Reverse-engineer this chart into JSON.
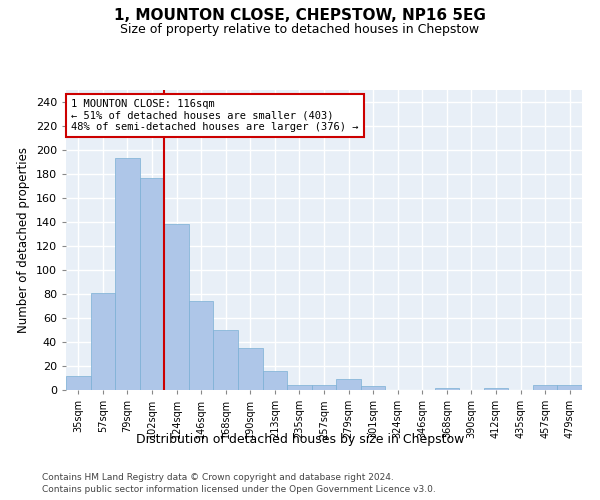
{
  "title": "1, MOUNTON CLOSE, CHEPSTOW, NP16 5EG",
  "subtitle": "Size of property relative to detached houses in Chepstow",
  "xlabel": "Distribution of detached houses by size in Chepstow",
  "ylabel": "Number of detached properties",
  "categories": [
    "35sqm",
    "57sqm",
    "79sqm",
    "102sqm",
    "124sqm",
    "146sqm",
    "168sqm",
    "190sqm",
    "213sqm",
    "235sqm",
    "257sqm",
    "279sqm",
    "301sqm",
    "324sqm",
    "346sqm",
    "368sqm",
    "390sqm",
    "412sqm",
    "435sqm",
    "457sqm",
    "479sqm"
  ],
  "values": [
    12,
    81,
    193,
    177,
    138,
    74,
    50,
    35,
    16,
    4,
    4,
    9,
    3,
    0,
    0,
    2,
    0,
    2,
    0,
    4,
    4
  ],
  "bar_color": "#aec6e8",
  "bar_edgecolor": "#7aafd4",
  "vline_x": 3.5,
  "vline_color": "#cc0000",
  "annotation_text": "1 MOUNTON CLOSE: 116sqm\n← 51% of detached houses are smaller (403)\n48% of semi-detached houses are larger (376) →",
  "annotation_box_edgecolor": "#cc0000",
  "annotation_box_facecolor": "#ffffff",
  "ylim": [
    0,
    250
  ],
  "yticks": [
    0,
    20,
    40,
    60,
    80,
    100,
    120,
    140,
    160,
    180,
    200,
    220,
    240
  ],
  "bg_color": "#e8eff7",
  "grid_color": "#ffffff",
  "footer1": "Contains HM Land Registry data © Crown copyright and database right 2024.",
  "footer2": "Contains public sector information licensed under the Open Government Licence v3.0."
}
